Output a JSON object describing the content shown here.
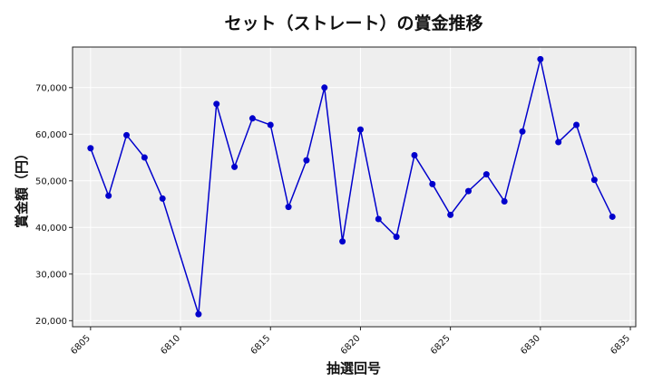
{
  "chart_data": {
    "type": "line",
    "title": "セット（ストレート）の賞金推移",
    "xlabel": "抽選回号",
    "ylabel": "賞金額（円）",
    "x": [
      6805,
      6806,
      6807,
      6808,
      6809,
      6811,
      6812,
      6813,
      6814,
      6815,
      6816,
      6817,
      6818,
      6819,
      6820,
      6821,
      6822,
      6823,
      6824,
      6825,
      6826,
      6827,
      6828,
      6829,
      6830,
      6831,
      6832,
      6833,
      6834
    ],
    "series": [
      {
        "values": [
          57000,
          46800,
          59800,
          55000,
          46200,
          21400,
          66500,
          53000,
          63400,
          62000,
          44400,
          54400,
          70000,
          37000,
          61000,
          41800,
          38000,
          55500,
          49300,
          42700,
          47800,
          51400,
          45600,
          60600,
          76100,
          58300,
          62000,
          50200,
          42300
        ]
      }
    ],
    "xticks": [
      "6805",
      "6810",
      "6815",
      "6820",
      "6825",
      "6830",
      "6835"
    ],
    "yticks": [
      "20,000",
      "30,000",
      "40,000",
      "50,000",
      "60,000",
      "70,000"
    ],
    "xlim": [
      6804,
      6835.3
    ],
    "ylim": [
      18700,
      78700
    ],
    "grid": true,
    "colors": {
      "line": "#0000cc",
      "marker": "#0000cc",
      "plot_bg": "#eeeeee",
      "grid": "#ffffff"
    }
  }
}
